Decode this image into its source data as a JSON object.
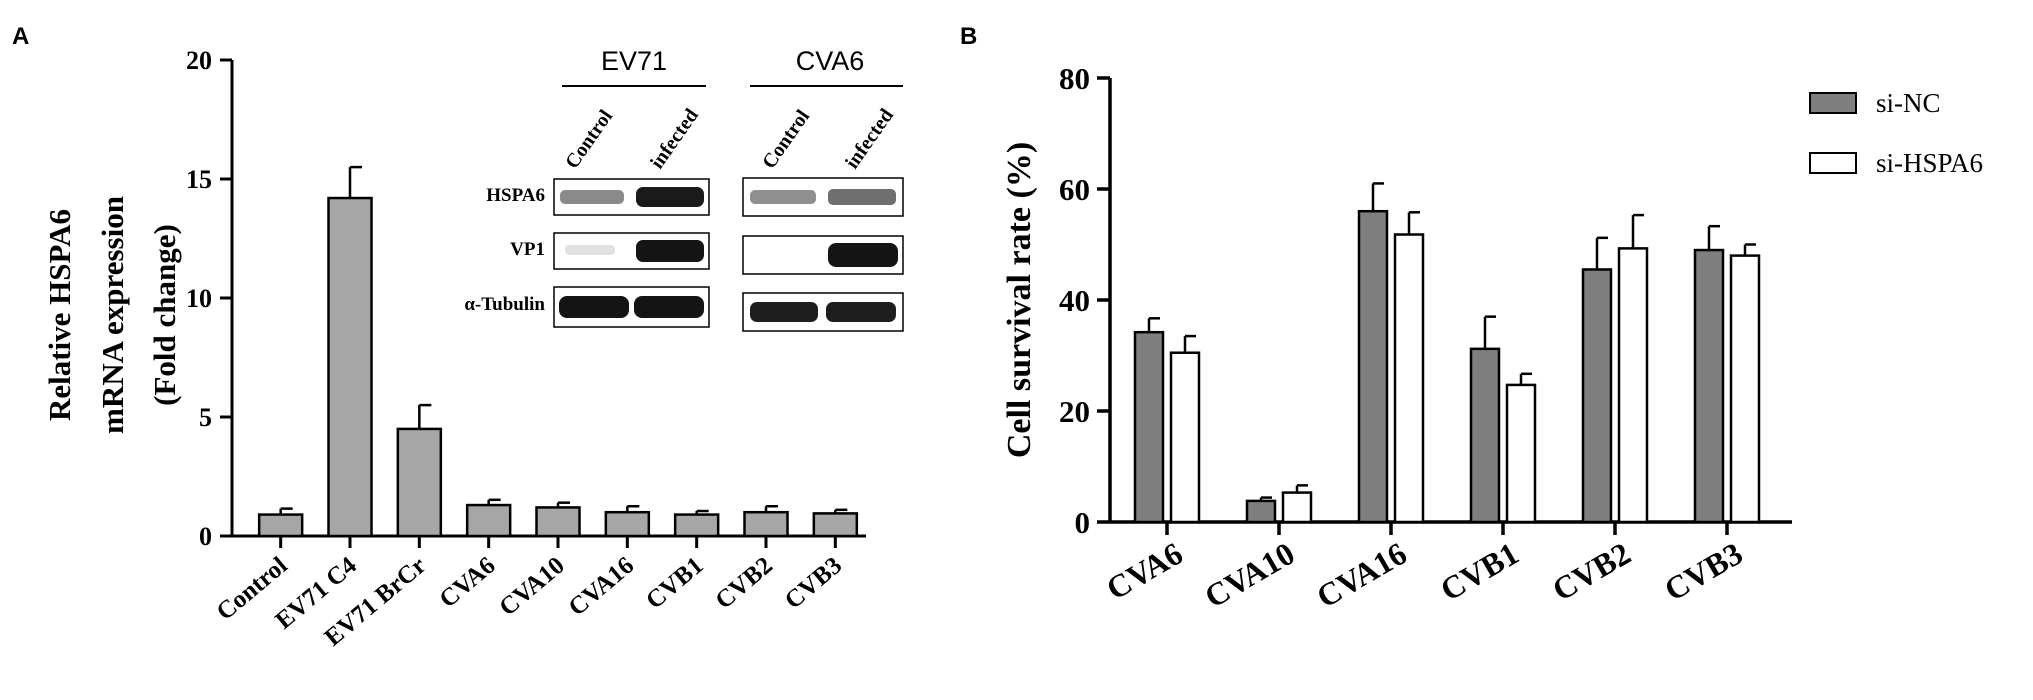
{
  "chart_data": [
    {
      "panel_label": "A",
      "type": "bar",
      "categories": [
        "Control",
        "EV71 C4",
        "EV71 BrCr",
        "CVA6",
        "CVA10",
        "CVA16",
        "CVB1",
        "CVB2",
        "CVB3"
      ],
      "values": [
        0.9,
        14.2,
        4.5,
        1.3,
        1.2,
        1.0,
        0.9,
        1.0,
        0.95
      ],
      "errors": [
        0.25,
        1.3,
        1.0,
        0.22,
        0.2,
        0.25,
        0.15,
        0.25,
        0.15
      ],
      "ylabel_lines": [
        "Relative HSPA6",
        "mRNA expression",
        "(Fold change)"
      ],
      "ylim": [
        0,
        20
      ],
      "yticks": [
        "0",
        "5",
        "10",
        "15",
        "20"
      ],
      "bar_color": "#a6a6a6",
      "inset_blot": {
        "groups": [
          "EV71",
          "CVA6"
        ],
        "lanes": [
          "Control",
          "infected"
        ],
        "rows": [
          "HSPA6",
          "VP1",
          "α-Tubulin"
        ]
      }
    },
    {
      "panel_label": "B",
      "type": "bar",
      "categories": [
        "CVA6",
        "CVA10",
        "CVA16",
        "CVB1",
        "CVB2",
        "CVB3"
      ],
      "series": [
        {
          "name": "si-NC",
          "values": [
            34.2,
            3.8,
            56.0,
            31.2,
            45.5,
            49.0
          ],
          "errors": [
            2.5,
            0.6,
            5.0,
            5.8,
            5.7,
            4.3
          ],
          "color": "#7f7f7f"
        },
        {
          "name": "si-HSPA6",
          "values": [
            30.5,
            5.3,
            51.8,
            24.7,
            49.3,
            48.0
          ],
          "errors": [
            3.0,
            1.3,
            4.0,
            2.0,
            6.0,
            2.0
          ],
          "color": "#ffffff"
        }
      ],
      "ylabel": "Cell survival rate (%)",
      "ylim": [
        0,
        80
      ],
      "yticks": [
        "0",
        "20",
        "40",
        "60",
        "80"
      ],
      "legend_position": "top-right"
    }
  ]
}
